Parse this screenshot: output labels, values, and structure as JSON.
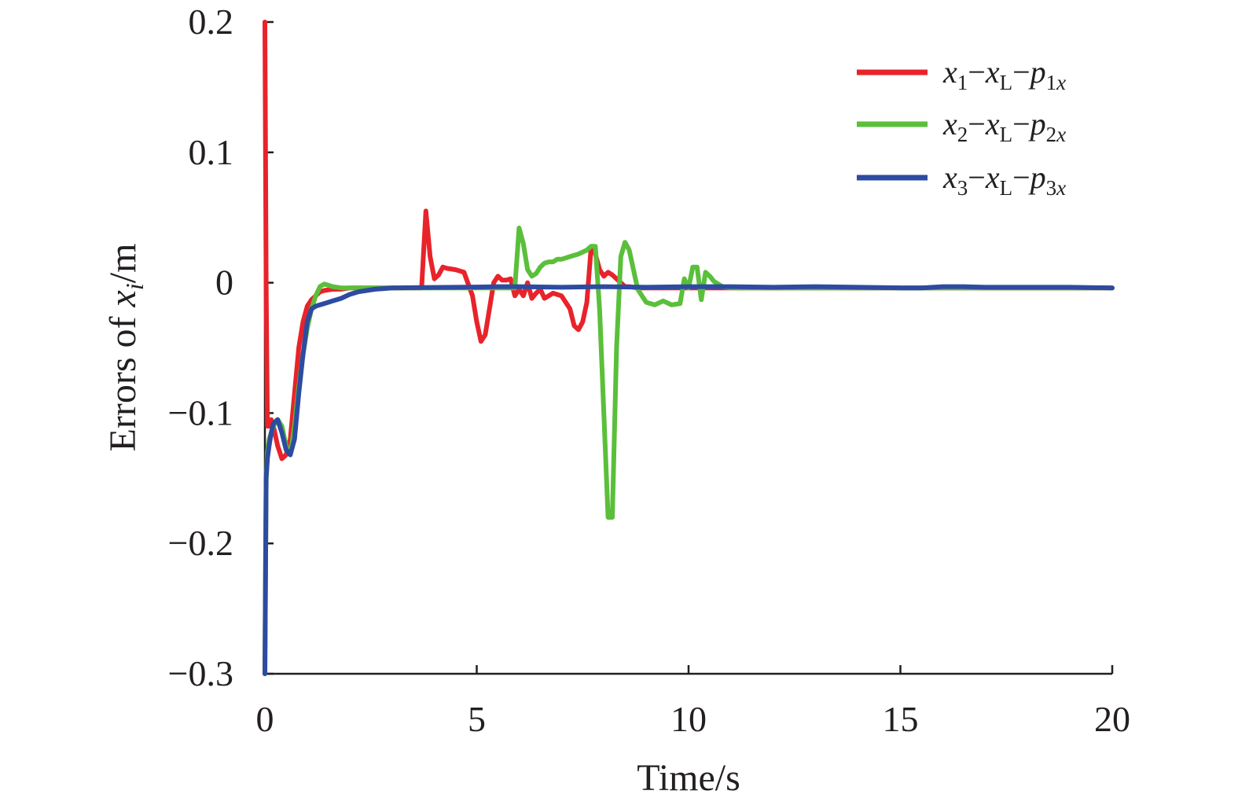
{
  "chart_data": {
    "type": "line",
    "xlabel": "Time/s",
    "ylabel": {
      "prefix": "Errors of ",
      "var": "x",
      "sub": "i",
      "suffix": "/m"
    },
    "xlim": [
      0,
      20
    ],
    "ylim": [
      -0.3,
      0.2
    ],
    "xticks": [
      0,
      5,
      10,
      15,
      20
    ],
    "xtick_labels": [
      "0",
      "5",
      "10",
      "15",
      "20"
    ],
    "yticks": [
      0.2,
      0.1,
      0,
      -0.1,
      -0.2,
      -0.3
    ],
    "ytick_labels": [
      "0.2",
      "0.1",
      "0",
      "−0.1",
      "−0.2",
      "−0.3"
    ],
    "grid": false,
    "legend_position": "top-right",
    "series": [
      {
        "legend": {
          "i": "1",
          "L": "L",
          "pi": "1x"
        },
        "color": "#e8232a",
        "x": [
          0,
          0.03,
          0.06,
          0.1,
          0.15,
          0.2,
          0.3,
          0.4,
          0.5,
          0.6,
          0.7,
          0.8,
          0.9,
          1.0,
          1.1,
          1.2,
          1.3,
          1.4,
          1.6,
          1.8,
          2.0,
          2.2,
          2.5,
          3.0,
          3.5,
          3.7,
          3.8,
          3.9,
          4.0,
          4.1,
          4.2,
          4.3,
          4.5,
          4.7,
          4.9,
          5.0,
          5.1,
          5.2,
          5.3,
          5.4,
          5.5,
          5.6,
          5.7,
          5.8,
          5.9,
          6.0,
          6.1,
          6.2,
          6.3,
          6.4,
          6.5,
          6.6,
          6.8,
          7.0,
          7.2,
          7.3,
          7.4,
          7.5,
          7.6,
          7.7,
          7.8,
          7.9,
          8.0,
          8.1,
          8.2,
          8.3,
          8.4,
          8.5,
          8.6,
          8.8,
          9.0,
          9.3,
          9.6,
          10.0,
          10.5,
          11.0,
          11.5,
          12.0,
          13.0,
          14.0,
          15.0,
          15.5,
          16.0,
          16.5,
          17.0,
          18.0,
          19.0,
          20.0
        ],
        "y": [
          0.2,
          0.0,
          -0.11,
          -0.11,
          -0.105,
          -0.11,
          -0.125,
          -0.135,
          -0.132,
          -0.12,
          -0.085,
          -0.05,
          -0.03,
          -0.018,
          -0.013,
          -0.01,
          -0.007,
          -0.006,
          -0.005,
          -0.005,
          -0.004,
          -0.004,
          -0.004,
          -0.004,
          -0.004,
          -0.004,
          0.055,
          0.02,
          0.003,
          0.006,
          0.012,
          0.011,
          0.01,
          0.008,
          -0.01,
          -0.03,
          -0.045,
          -0.04,
          -0.02,
          0.0,
          0.005,
          0.002,
          0.002,
          0.003,
          -0.01,
          -0.005,
          -0.01,
          0.0,
          -0.012,
          -0.008,
          -0.005,
          -0.012,
          -0.008,
          -0.01,
          -0.02,
          -0.033,
          -0.036,
          -0.03,
          -0.015,
          0.027,
          0.022,
          0.01,
          0.005,
          0.008,
          0.006,
          0.003,
          0.0,
          -0.003,
          -0.003,
          -0.004,
          -0.004,
          -0.004,
          -0.004,
          -0.004,
          -0.004,
          -0.004,
          -0.004,
          -0.004,
          -0.004,
          -0.004,
          -0.004,
          -0.004,
          -0.004,
          -0.004,
          -0.004,
          -0.004,
          -0.004,
          -0.004
        ]
      },
      {
        "legend": {
          "i": "2",
          "L": "L",
          "pi": "2x"
        },
        "color": "#5abf3a",
        "x": [
          0,
          0.03,
          0.06,
          0.1,
          0.2,
          0.3,
          0.4,
          0.5,
          0.6,
          0.7,
          0.8,
          0.9,
          1.0,
          1.1,
          1.2,
          1.3,
          1.4,
          1.5,
          1.6,
          1.8,
          2.0,
          2.5,
          3.0,
          3.5,
          4.0,
          4.5,
          5.0,
          5.5,
          5.8,
          5.9,
          6.0,
          6.1,
          6.2,
          6.3,
          6.4,
          6.5,
          6.6,
          6.7,
          6.8,
          6.9,
          7.0,
          7.2,
          7.4,
          7.6,
          7.7,
          7.8,
          7.9,
          8.0,
          8.1,
          8.2,
          8.3,
          8.4,
          8.5,
          8.6,
          8.7,
          8.8,
          8.9,
          9.0,
          9.2,
          9.4,
          9.6,
          9.8,
          9.9,
          10.0,
          10.1,
          10.2,
          10.3,
          10.4,
          10.5,
          10.6,
          10.8,
          11.0,
          11.5,
          12.0,
          13.0,
          14.0,
          15.0,
          16.0,
          17.0,
          18.0,
          19.0,
          20.0
        ],
        "y": [
          -0.3,
          -0.15,
          -0.13,
          -0.12,
          -0.11,
          -0.105,
          -0.11,
          -0.125,
          -0.132,
          -0.11,
          -0.08,
          -0.055,
          -0.035,
          -0.02,
          -0.01,
          -0.003,
          -0.001,
          -0.002,
          -0.003,
          -0.004,
          -0.004,
          -0.004,
          -0.004,
          -0.004,
          -0.004,
          -0.004,
          -0.004,
          -0.004,
          -0.004,
          -0.004,
          0.042,
          0.03,
          0.01,
          0.005,
          0.007,
          0.012,
          0.015,
          0.016,
          0.016,
          0.018,
          0.018,
          0.02,
          0.022,
          0.025,
          0.028,
          0.028,
          -0.02,
          -0.1,
          -0.18,
          -0.18,
          -0.05,
          0.02,
          0.031,
          0.025,
          0.01,
          -0.005,
          -0.01,
          -0.015,
          -0.017,
          -0.014,
          -0.017,
          -0.016,
          0.003,
          -0.004,
          0.012,
          0.012,
          -0.013,
          0.008,
          0.005,
          0.001,
          -0.003,
          -0.004,
          -0.004,
          -0.004,
          -0.004,
          -0.004,
          -0.004,
          -0.004,
          -0.004,
          -0.004,
          -0.004,
          -0.004
        ]
      },
      {
        "legend": {
          "i": "3",
          "L": "L",
          "pi": "3x"
        },
        "color": "#2d4ba0",
        "x": [
          0,
          0.03,
          0.06,
          0.1,
          0.15,
          0.2,
          0.3,
          0.4,
          0.5,
          0.6,
          0.7,
          0.8,
          0.9,
          1.0,
          1.1,
          1.2,
          1.4,
          1.6,
          1.8,
          2.0,
          2.2,
          2.4,
          2.6,
          2.8,
          3.0,
          3.5,
          4.0,
          4.5,
          5.0,
          5.5,
          6.0,
          7.0,
          8.0,
          9.0,
          10.0,
          11.0,
          12.0,
          13.0,
          14.0,
          15.0,
          15.5,
          16.0,
          16.5,
          17.0,
          18.0,
          19.0,
          20.0
        ],
        "y": [
          -0.3,
          -0.15,
          -0.135,
          -0.125,
          -0.115,
          -0.108,
          -0.105,
          -0.115,
          -0.128,
          -0.132,
          -0.12,
          -0.085,
          -0.055,
          -0.03,
          -0.02,
          -0.018,
          -0.016,
          -0.014,
          -0.012,
          -0.009,
          -0.007,
          -0.006,
          -0.005,
          -0.0045,
          -0.004,
          -0.0038,
          -0.0036,
          -0.0035,
          -0.0033,
          -0.003,
          -0.003,
          -0.0035,
          -0.003,
          -0.0035,
          -0.003,
          -0.003,
          -0.0035,
          -0.003,
          -0.0035,
          -0.004,
          -0.004,
          -0.003,
          -0.003,
          -0.0035,
          -0.0035,
          -0.0035,
          -0.004
        ]
      }
    ]
  }
}
